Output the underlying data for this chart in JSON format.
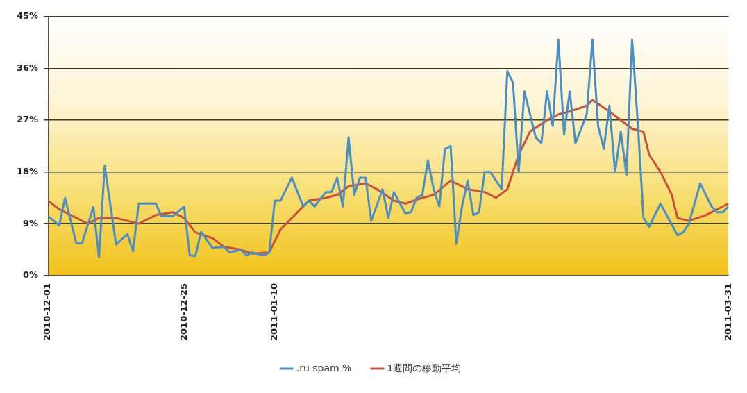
{
  "chart_data": {
    "type": "line",
    "xlim": [
      "2010-12-01",
      "2011-03-31"
    ],
    "xticks": [
      "2010-12-01",
      "2010-12-25",
      "2011-01-10",
      "2011-03-31"
    ],
    "ylim": [
      0,
      45
    ],
    "yticks": [
      {
        "value": 0,
        "label": "0%"
      },
      {
        "value": 9,
        "label": "9%"
      },
      {
        "value": 18,
        "label": "18%"
      },
      {
        "value": 27,
        "label": "27%"
      },
      {
        "value": 36,
        "label": "36%"
      },
      {
        "value": 45,
        "label": "45%"
      }
    ],
    "grid": "y",
    "legend": "bottom",
    "marker": "none",
    "line_style": "solid",
    "series": [
      {
        "name": ".ru spam %",
        "color": "#4a8ec4",
        "x": [
          "2010-12-01",
          "2010-12-03",
          "2010-12-04",
          "2010-12-06",
          "2010-12-07",
          "2010-12-09",
          "2010-12-10",
          "2010-12-11",
          "2010-12-13",
          "2010-12-15",
          "2010-12-16",
          "2010-12-17",
          "2010-12-20",
          "2010-12-21",
          "2010-12-23",
          "2010-12-25",
          "2010-12-26",
          "2010-12-27",
          "2010-12-28",
          "2010-12-30",
          "2011-01-01",
          "2011-01-02",
          "2011-01-04",
          "2011-01-05",
          "2011-01-06",
          "2011-01-08",
          "2011-01-09",
          "2011-01-10",
          "2011-01-11",
          "2011-01-13",
          "2011-01-15",
          "2011-01-16",
          "2011-01-17",
          "2011-01-19",
          "2011-01-20",
          "2011-01-21",
          "2011-01-22",
          "2011-01-23",
          "2011-01-24",
          "2011-01-25",
          "2011-01-26",
          "2011-01-27",
          "2011-01-29",
          "2011-01-30",
          "2011-01-31",
          "2011-02-02",
          "2011-02-03",
          "2011-02-04",
          "2011-02-05",
          "2011-02-06",
          "2011-02-07",
          "2011-02-08",
          "2011-02-09",
          "2011-02-10",
          "2011-02-11",
          "2011-02-12",
          "2011-02-13",
          "2011-02-14",
          "2011-02-15",
          "2011-02-16",
          "2011-02-17",
          "2011-02-19",
          "2011-02-20",
          "2011-02-21",
          "2011-02-22",
          "2011-02-23",
          "2011-02-25",
          "2011-02-26",
          "2011-02-27",
          "2011-02-28",
          "2011-03-01",
          "2011-03-02",
          "2011-03-03",
          "2011-03-04",
          "2011-03-06",
          "2011-03-07",
          "2011-03-08",
          "2011-03-09",
          "2011-03-10",
          "2011-03-11",
          "2011-03-12",
          "2011-03-13",
          "2011-03-14",
          "2011-03-15",
          "2011-03-16",
          "2011-03-17",
          "2011-03-19",
          "2011-03-22",
          "2011-03-23",
          "2011-03-24",
          "2011-03-26",
          "2011-03-28",
          "2011-03-29",
          "2011-03-30",
          "2011-03-31"
        ],
        "values": [
          10.3,
          8.7,
          13.5,
          5.6,
          5.6,
          11.9,
          3.2,
          19.1,
          5.4,
          7.2,
          4.2,
          12.5,
          12.5,
          10.3,
          10.3,
          12,
          3.5,
          3.4,
          7.6,
          4.8,
          5,
          4,
          4.5,
          3.5,
          4,
          3.5,
          4,
          13,
          13,
          17,
          12,
          13,
          12,
          14.5,
          14.5,
          17,
          12,
          24,
          14,
          17,
          17,
          9.5,
          15,
          10,
          14.5,
          10.8,
          11,
          13.5,
          14,
          20,
          15,
          12,
          22,
          22.5,
          5.5,
          12,
          16.5,
          10.5,
          11,
          18,
          18,
          15,
          35.5,
          33.5,
          18,
          32,
          24,
          23,
          32,
          26,
          41,
          24.5,
          32,
          23,
          28,
          41,
          26,
          22,
          29.5,
          18,
          25,
          17.5,
          41,
          26.5,
          10,
          8.5,
          12.5,
          7,
          7.5,
          9,
          16,
          12,
          11,
          11,
          12
        ]
      },
      {
        "name": "1週間の移動平均",
        "color": "#c8503c",
        "x": [
          "2010-12-01",
          "2010-12-03",
          "2010-12-06",
          "2010-12-08",
          "2010-12-10",
          "2010-12-13",
          "2010-12-15",
          "2010-12-17",
          "2010-12-20",
          "2010-12-23",
          "2010-12-25",
          "2010-12-27",
          "2010-12-30",
          "2011-01-01",
          "2011-01-04",
          "2011-01-06",
          "2011-01-09",
          "2011-01-11",
          "2011-01-14",
          "2011-01-16",
          "2011-01-19",
          "2011-01-21",
          "2011-01-23",
          "2011-01-26",
          "2011-01-28",
          "2011-01-31",
          "2011-02-02",
          "2011-02-05",
          "2011-02-07",
          "2011-02-10",
          "2011-02-13",
          "2011-02-16",
          "2011-02-18",
          "2011-02-20",
          "2011-02-22",
          "2011-02-24",
          "2011-02-27",
          "2011-03-01",
          "2011-03-03",
          "2011-03-06",
          "2011-03-07",
          "2011-03-10",
          "2011-03-12",
          "2011-03-14",
          "2011-03-16",
          "2011-03-17",
          "2011-03-19",
          "2011-03-21",
          "2011-03-22",
          "2011-03-24",
          "2011-03-27",
          "2011-03-29",
          "2011-03-31"
        ],
        "values": [
          13,
          11.5,
          10,
          9,
          10,
          10,
          9.5,
          9,
          10.5,
          11,
          10,
          7.5,
          6.5,
          5,
          4.5,
          3.8,
          4,
          8,
          11,
          13,
          13.5,
          14,
          15.5,
          16,
          15,
          13,
          12.5,
          13.5,
          14,
          16.5,
          15,
          14.5,
          13.5,
          15,
          21,
          25,
          27,
          28,
          28.5,
          29.5,
          30.5,
          28.5,
          27,
          25.5,
          25,
          21,
          18,
          14,
          10,
          9.5,
          10.5,
          11.5,
          12.5
        ]
      }
    ]
  }
}
